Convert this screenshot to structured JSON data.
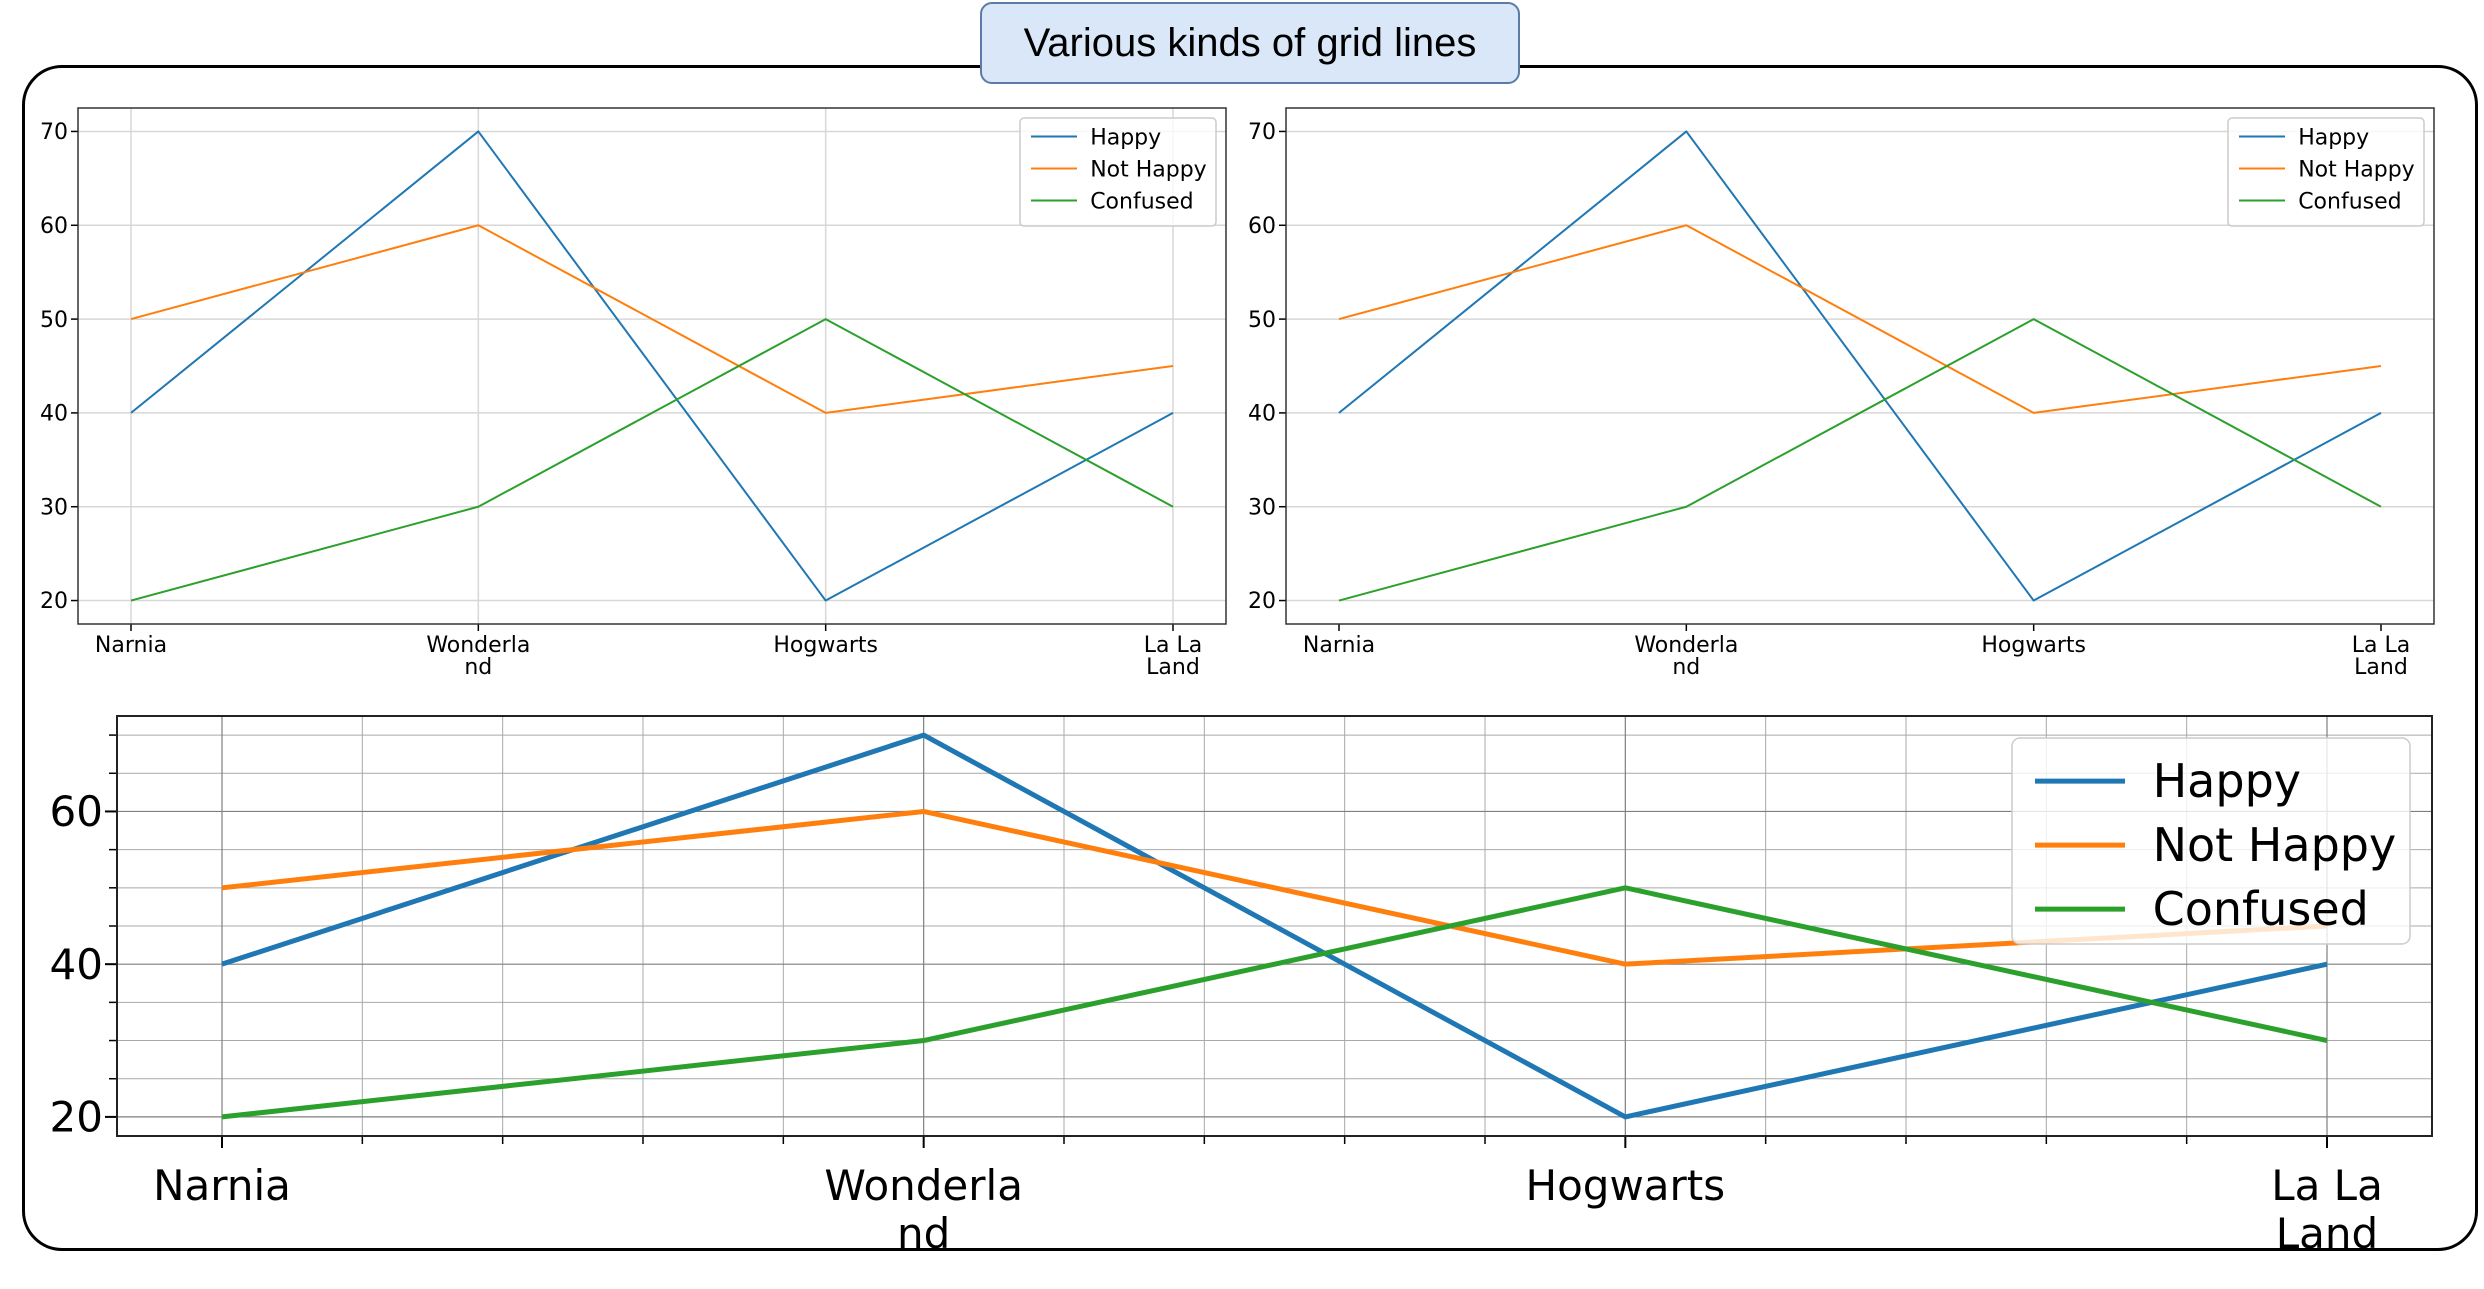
{
  "page_title": "Various kinds of grid lines",
  "chart_data": [
    {
      "type": "line",
      "title": "",
      "categories": [
        "Narnia",
        "Wonderland",
        "Hogwarts",
        "La La Land"
      ],
      "tick_labels": [
        [
          "Narnia"
        ],
        [
          "Wonderla",
          "nd"
        ],
        [
          "Hogwarts"
        ],
        [
          "La La",
          "Land"
        ]
      ],
      "series": [
        {
          "name": "Happy",
          "values": [
            40,
            70,
            20,
            40
          ],
          "color": "#1f77b4"
        },
        {
          "name": "Not Happy",
          "values": [
            50,
            60,
            40,
            45
          ],
          "color": "#ff7f0e"
        },
        {
          "name": "Confused",
          "values": [
            20,
            30,
            50,
            30
          ],
          "color": "#2ca02c"
        }
      ],
      "yticks": [
        20,
        30,
        40,
        50,
        60,
        70
      ],
      "ylim": [
        17.5,
        72.5
      ],
      "grid": "major x and y",
      "legend": "top-right"
    },
    {
      "type": "line",
      "title": "",
      "categories": [
        "Narnia",
        "Wonderland",
        "Hogwarts",
        "La La Land"
      ],
      "tick_labels": [
        [
          "Narnia"
        ],
        [
          "Wonderla",
          "nd"
        ],
        [
          "Hogwarts"
        ],
        [
          "La La",
          "Land"
        ]
      ],
      "series": [
        {
          "name": "Happy",
          "values": [
            40,
            70,
            20,
            40
          ],
          "color": "#1f77b4"
        },
        {
          "name": "Not Happy",
          "values": [
            50,
            60,
            40,
            45
          ],
          "color": "#ff7f0e"
        },
        {
          "name": "Confused",
          "values": [
            20,
            30,
            50,
            30
          ],
          "color": "#2ca02c"
        }
      ],
      "yticks": [
        20,
        30,
        40,
        50,
        60,
        70
      ],
      "ylim": [
        17.5,
        72.5
      ],
      "grid": "major y only",
      "legend": "top-right"
    },
    {
      "type": "line",
      "title": "",
      "categories": [
        "Narnia",
        "Wonderland",
        "Hogwarts",
        "La La Land"
      ],
      "tick_labels": [
        [
          "Narnia"
        ],
        [
          "Wonderla",
          "nd"
        ],
        [
          "Hogwarts"
        ],
        [
          "La La",
          "Land"
        ]
      ],
      "series": [
        {
          "name": "Happy",
          "values": [
            40,
            70,
            20,
            40
          ],
          "color": "#1f77b4"
        },
        {
          "name": "Not Happy",
          "values": [
            50,
            60,
            40,
            45
          ],
          "color": "#ff7f0e"
        },
        {
          "name": "Confused",
          "values": [
            20,
            30,
            50,
            30
          ],
          "color": "#2ca02c"
        }
      ],
      "yticks": [
        20,
        40,
        60
      ],
      "ylim": [
        17.5,
        72.5
      ],
      "grid": "major and minor x and y",
      "legend": "top-right"
    }
  ]
}
